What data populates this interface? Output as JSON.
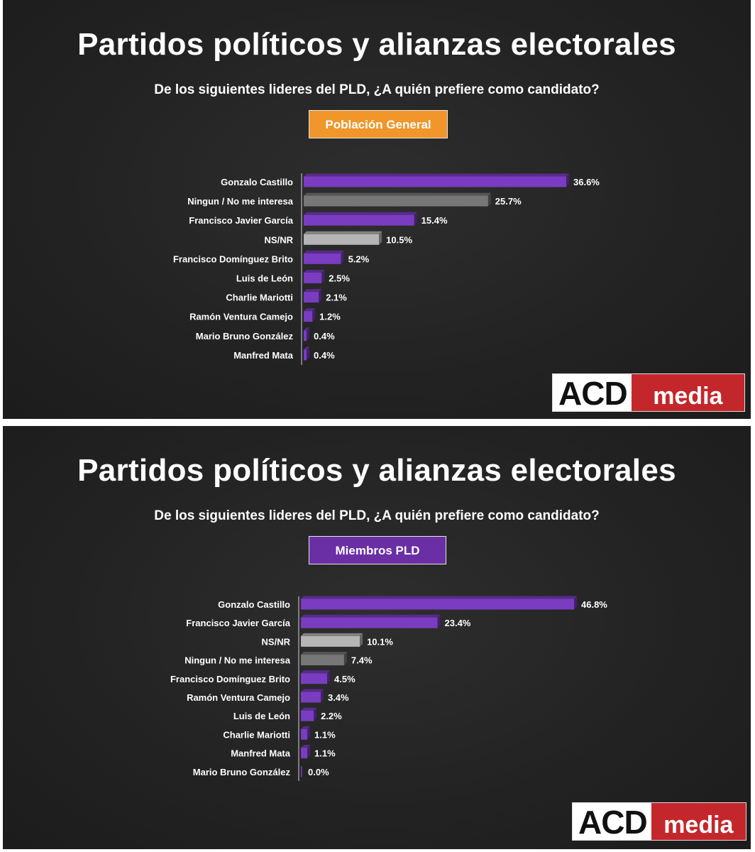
{
  "panels": [
    {
      "title": "Partidos políticos y alianzas electorales",
      "subtitle": "De los siguientes lideres del PLD, ¿A quién prefiere como candidato?",
      "badge": {
        "label": "Población General",
        "color": "#f0962a"
      },
      "logo": {
        "left_text": "ACD",
        "right_text": "media"
      }
    },
    {
      "title": "Partidos políticos y alianzas electorales",
      "subtitle": "De los siguientes lideres del PLD, ¿A quién prefiere como candidato?",
      "badge": {
        "label": "Miembros PLD",
        "color": "#6a2fa4"
      },
      "logo": {
        "left_text": "ACD",
        "right_text": "media"
      }
    }
  ],
  "colors": {
    "purple": "#7a3cc0",
    "dark_gray": "#777777",
    "light_gray": "#b5b5b5",
    "text": "#ffffff"
  },
  "chart_data": [
    {
      "type": "bar",
      "orientation": "horizontal",
      "title": "Partidos políticos y alianzas electorales",
      "subtitle": "De los siguientes lideres del PLD, ¿A quién prefiere como candidato?",
      "group": "Población General",
      "categories": [
        "Gonzalo Castillo",
        "Ningun / No me interesa",
        "Francisco Javier García",
        "NS/NR",
        "Francisco Domínguez Brito",
        "Luis de León",
        "Charlie Mariotti",
        "Ramón Ventura Camejo",
        "Mario Bruno González",
        "Manfred Mata"
      ],
      "values": [
        36.6,
        25.7,
        15.4,
        10.5,
        5.2,
        2.5,
        2.1,
        1.2,
        0.4,
        0.4
      ],
      "value_labels": [
        "36.6%",
        "25.7%",
        "15.4%",
        "10.5%",
        "5.2%",
        "2.5%",
        "2.1%",
        "1.2%",
        "0.4%",
        "0.4%"
      ],
      "bar_colors": [
        "purple",
        "dark_gray",
        "purple",
        "light_gray",
        "purple",
        "purple",
        "purple",
        "purple",
        "purple",
        "purple"
      ],
      "xlim": [
        0,
        36.6
      ],
      "grid": false
    },
    {
      "type": "bar",
      "orientation": "horizontal",
      "title": "Partidos políticos y alianzas electorales",
      "subtitle": "De los siguientes lideres del PLD, ¿A quién prefiere como candidato?",
      "group": "Miembros PLD",
      "categories": [
        "Gonzalo Castillo",
        "Francisco Javier García",
        "NS/NR",
        "Ningun / No me interesa",
        "Francisco Domínguez Brito",
        "Ramón Ventura Camejo",
        "Luis de León",
        "Charlie Mariotti",
        "Manfred Mata",
        "Mario Bruno González"
      ],
      "values": [
        46.8,
        23.4,
        10.1,
        7.4,
        4.5,
        3.4,
        2.2,
        1.1,
        1.1,
        0.0
      ],
      "value_labels": [
        "46.8%",
        "23.4%",
        "10.1%",
        "7.4%",
        "4.5%",
        "3.4%",
        "2.2%",
        "1.1%",
        "1.1%",
        "0.0%"
      ],
      "bar_colors": [
        "purple",
        "purple",
        "light_gray",
        "dark_gray",
        "purple",
        "purple",
        "purple",
        "purple",
        "purple",
        "purple"
      ],
      "xlim": [
        0,
        46.8
      ],
      "grid": false
    }
  ]
}
